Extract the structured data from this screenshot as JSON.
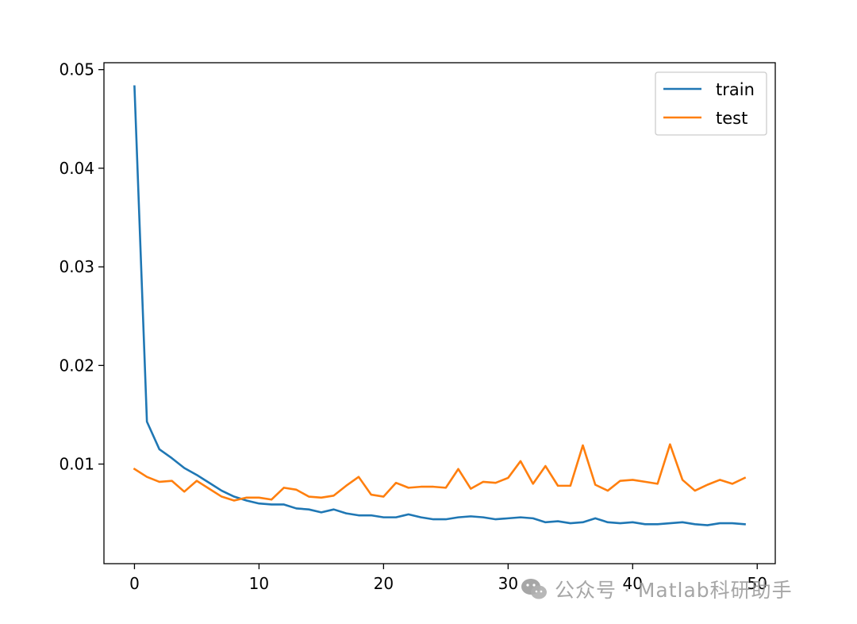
{
  "colors": {
    "train": "#1f77b4",
    "test": "#ff7f0e"
  },
  "watermark": {
    "text": "公众号 · Matlab科研助手",
    "icon": "wechat-icon"
  },
  "chart_data": {
    "type": "line",
    "title": "",
    "xlabel": "",
    "ylabel": "",
    "xlim": [
      -2.45,
      51.45
    ],
    "ylim": [
      -0.0001,
      0.0507
    ],
    "x_ticks": [
      0,
      10,
      20,
      30,
      40,
      50
    ],
    "x_tick_labels": [
      "0",
      "10",
      "20",
      "30",
      "40",
      "50"
    ],
    "y_ticks": [
      0.01,
      0.02,
      0.03,
      0.04,
      0.05
    ],
    "y_tick_labels": [
      "0.01",
      "0.02",
      "0.03",
      "0.04",
      "0.05"
    ],
    "grid": false,
    "legend": "top-right",
    "x": [
      0,
      1,
      2,
      3,
      4,
      5,
      6,
      7,
      8,
      9,
      10,
      11,
      12,
      13,
      14,
      15,
      16,
      17,
      18,
      19,
      20,
      21,
      22,
      23,
      24,
      25,
      26,
      27,
      28,
      29,
      30,
      31,
      32,
      33,
      34,
      35,
      36,
      37,
      38,
      39,
      40,
      41,
      42,
      43,
      44,
      45,
      46,
      47,
      48,
      49
    ],
    "series": [
      {
        "name": "train",
        "color": "#1f77b4",
        "values": [
          0.0483,
          0.0143,
          0.0115,
          0.0106,
          0.0096,
          0.0089,
          0.0081,
          0.0073,
          0.0067,
          0.0063,
          0.006,
          0.0059,
          0.0059,
          0.0055,
          0.0054,
          0.0051,
          0.0054,
          0.005,
          0.0048,
          0.0048,
          0.0046,
          0.0046,
          0.0049,
          0.0046,
          0.0044,
          0.0044,
          0.0046,
          0.0047,
          0.0046,
          0.0044,
          0.0045,
          0.0046,
          0.0045,
          0.0041,
          0.0042,
          0.004,
          0.0041,
          0.0045,
          0.0041,
          0.004,
          0.0041,
          0.0039,
          0.0039,
          0.004,
          0.0041,
          0.0039,
          0.0038,
          0.004,
          0.004,
          0.0039
        ]
      },
      {
        "name": "test",
        "color": "#ff7f0e",
        "values": [
          0.0095,
          0.0087,
          0.0082,
          0.0083,
          0.0072,
          0.0083,
          0.0075,
          0.0067,
          0.0063,
          0.0066,
          0.0066,
          0.0064,
          0.0076,
          0.0074,
          0.0067,
          0.0066,
          0.0068,
          0.0078,
          0.0087,
          0.0069,
          0.0067,
          0.0081,
          0.0076,
          0.0077,
          0.0077,
          0.0076,
          0.0095,
          0.0075,
          0.0082,
          0.0081,
          0.0086,
          0.0103,
          0.008,
          0.0098,
          0.0078,
          0.0078,
          0.0119,
          0.0079,
          0.0073,
          0.0083,
          0.0084,
          0.0082,
          0.008,
          0.012,
          0.0084,
          0.0073,
          0.0079,
          0.0084,
          0.008,
          0.0086
        ]
      }
    ]
  }
}
